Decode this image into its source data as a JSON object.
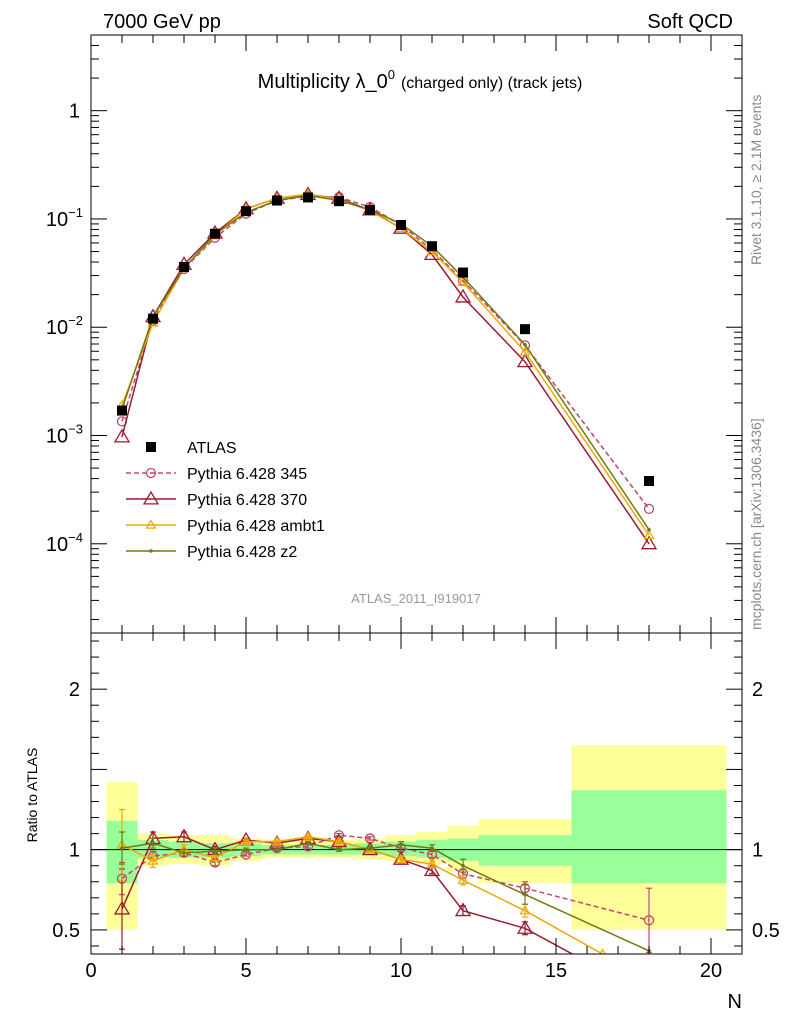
{
  "header": {
    "left": "7000 GeV pp",
    "right": "Soft QCD"
  },
  "side_text": {
    "rivet": "Rivet 3.1.10, ≥ 2.1M events",
    "site": "mcplots.cern.ch [arXiv:1306.3436]"
  },
  "chart_data": [
    {
      "type": "line",
      "title_main": "Multiplicity λ_0",
      "title_sup": "0",
      "title_sub": "(charged only) (track jets)",
      "watermark": "ATLAS_2011_I919017",
      "y_scale": "log",
      "xlim": [
        0,
        21
      ],
      "ylim": [
        1.5e-05,
        5
      ],
      "y_tick_labels": [
        {
          "value": 1,
          "base": "1",
          "exp": ""
        },
        {
          "value": 0.1,
          "base": "10",
          "exp": "−1"
        },
        {
          "value": 0.01,
          "base": "10",
          "exp": "−2"
        },
        {
          "value": 0.001,
          "base": "10",
          "exp": "−3"
        },
        {
          "value": 0.0001,
          "base": "10",
          "exp": "−4"
        }
      ],
      "legend_position": "bottom-left",
      "data": {
        "name": "ATLAS",
        "x": [
          1,
          2,
          3,
          4,
          5,
          6,
          7,
          8,
          9,
          10,
          11,
          12,
          14,
          18
        ],
        "y": [
          0.0017,
          0.012,
          0.036,
          0.073,
          0.118,
          0.148,
          0.158,
          0.146,
          0.121,
          0.088,
          0.056,
          0.032,
          0.0096,
          0.00038
        ]
      },
      "series": [
        {
          "name": "Pythia 6.428 345",
          "color": "#c0486a",
          "dashed": true,
          "marker": "circle",
          "x": [
            1,
            2,
            3,
            4,
            5,
            6,
            7,
            8,
            9,
            10,
            11,
            12,
            14,
            18
          ],
          "y": [
            0.00135,
            0.0115,
            0.0345,
            0.067,
            0.112,
            0.148,
            0.162,
            0.159,
            0.129,
            0.088,
            0.052,
            0.027,
            0.0068,
            0.00021
          ]
        },
        {
          "name": "Pythia 6.428 370",
          "color": "#9b1b30",
          "dashed": false,
          "marker": "triangle",
          "x": [
            1,
            2,
            3,
            4,
            5,
            6,
            7,
            8,
            9,
            10,
            11,
            12,
            14,
            18
          ],
          "y": [
            0.00097,
            0.0125,
            0.038,
            0.074,
            0.124,
            0.155,
            0.168,
            0.155,
            0.121,
            0.082,
            0.047,
            0.019,
            0.0048,
            0.0001
          ]
        },
        {
          "name": "Pythia 6.428 ambt1",
          "color": "#f0a800",
          "dashed": false,
          "marker": "triangle-small",
          "x": [
            1,
            2,
            3,
            4,
            5,
            6,
            7,
            8,
            9,
            10,
            11,
            12,
            14,
            18
          ],
          "y": [
            0.0019,
            0.011,
            0.035,
            0.07,
            0.124,
            0.155,
            0.17,
            0.152,
            0.119,
            0.082,
            0.05,
            0.026,
            0.0059,
            0.00012
          ]
        },
        {
          "name": "Pythia 6.428 z2",
          "color": "#6e7a14",
          "dashed": false,
          "marker": "dot",
          "x": [
            1,
            2,
            3,
            4,
            5,
            6,
            7,
            8,
            9,
            10,
            11,
            12,
            14,
            18
          ],
          "y": [
            0.00175,
            0.0125,
            0.035,
            0.072,
            0.115,
            0.148,
            0.165,
            0.148,
            0.122,
            0.09,
            0.056,
            0.029,
            0.0069,
            0.000135
          ]
        }
      ]
    },
    {
      "type": "line",
      "ylabel": "Ratio to ATLAS",
      "xlabel": "N",
      "xlim": [
        0,
        21
      ],
      "ylim": [
        0.35,
        2.35
      ],
      "x_tick_labels": [
        {
          "value": 0,
          "label": "0"
        },
        {
          "value": 5,
          "label": "5"
        },
        {
          "value": 10,
          "label": "10"
        },
        {
          "value": 15,
          "label": "15"
        },
        {
          "value": 20,
          "label": "20"
        }
      ],
      "y_tick_labels": [
        {
          "value": 2,
          "label": "2"
        },
        {
          "value": 1,
          "label": "1"
        },
        {
          "value": 0.5,
          "label": "0.5"
        }
      ],
      "bands": [
        {
          "x0": 0.5,
          "x1": 1.5,
          "green": [
            0.79,
            1.18
          ],
          "yellow": [
            0.5,
            1.42
          ]
        },
        {
          "x0": 1.5,
          "x1": 2.5,
          "green": [
            0.95,
            1.06
          ],
          "yellow": [
            0.9,
            1.1
          ]
        },
        {
          "x0": 2.5,
          "x1": 3.5,
          "green": [
            0.95,
            1.05
          ],
          "yellow": [
            0.91,
            1.09
          ]
        },
        {
          "x0": 3.5,
          "x1": 4.5,
          "green": [
            0.95,
            1.04
          ],
          "yellow": [
            0.9,
            1.09
          ]
        },
        {
          "x0": 4.5,
          "x1": 5.5,
          "green": [
            0.96,
            1.04
          ],
          "yellow": [
            0.93,
            1.07
          ]
        },
        {
          "x0": 5.5,
          "x1": 6.5,
          "green": [
            0.97,
            1.03
          ],
          "yellow": [
            0.95,
            1.06
          ]
        },
        {
          "x0": 6.5,
          "x1": 7.5,
          "green": [
            0.97,
            1.03
          ],
          "yellow": [
            0.95,
            1.06
          ]
        },
        {
          "x0": 7.5,
          "x1": 8.5,
          "green": [
            0.97,
            1.03
          ],
          "yellow": [
            0.95,
            1.06
          ]
        },
        {
          "x0": 8.5,
          "x1": 9.5,
          "green": [
            0.97,
            1.04
          ],
          "yellow": [
            0.94,
            1.07
          ]
        },
        {
          "x0": 9.5,
          "x1": 10.5,
          "green": [
            0.96,
            1.05
          ],
          "yellow": [
            0.93,
            1.09
          ]
        },
        {
          "x0": 10.5,
          "x1": 11.5,
          "green": [
            0.95,
            1.06
          ],
          "yellow": [
            0.91,
            1.11
          ]
        },
        {
          "x0": 11.5,
          "x1": 12.5,
          "green": [
            0.93,
            1.07
          ],
          "yellow": [
            0.86,
            1.15
          ]
        },
        {
          "x0": 12.5,
          "x1": 15.5,
          "green": [
            0.9,
            1.09
          ],
          "yellow": [
            0.79,
            1.19
          ]
        },
        {
          "x0": 15.5,
          "x1": 20.5,
          "green": [
            0.79,
            1.37
          ],
          "yellow": [
            0.5,
            1.65
          ]
        }
      ],
      "series": [
        {
          "name": "Pythia 6.428 345",
          "color": "#c0486a",
          "dashed": true,
          "marker": "circle",
          "x": [
            1,
            2,
            3,
            4,
            5,
            6,
            7,
            8,
            9,
            10,
            11,
            12,
            14,
            18
          ],
          "y": [
            0.82,
            0.96,
            0.98,
            0.92,
            0.97,
            1.01,
            1.02,
            1.09,
            1.07,
            1.01,
            0.97,
            0.85,
            0.76,
            0.56
          ],
          "err": [
            0.1,
            0.03,
            0.02,
            0.02,
            0.01,
            0.01,
            0.01,
            0.01,
            0.01,
            0.02,
            0.02,
            0.03,
            0.04,
            0.2
          ]
        },
        {
          "name": "Pythia 6.428 370",
          "color": "#9b1b30",
          "dashed": false,
          "marker": "triangle",
          "x": [
            1,
            2,
            3,
            4,
            5,
            6,
            7,
            8,
            9,
            10,
            11,
            12,
            14,
            16
          ],
          "y": [
            0.63,
            1.07,
            1.08,
            1.0,
            1.06,
            1.04,
            1.07,
            1.05,
            1.0,
            0.94,
            0.87,
            0.62,
            0.51,
            0.3
          ],
          "err": [
            0.25,
            0.04,
            0.03,
            0.02,
            0.01,
            0.01,
            0.01,
            0.01,
            0.01,
            0.02,
            0.02,
            0.03,
            0.04,
            0
          ]
        },
        {
          "name": "Pythia 6.428 ambt1",
          "color": "#f0a800",
          "dashed": false,
          "marker": "triangle-small",
          "x": [
            1,
            2,
            3,
            4,
            5,
            6,
            7,
            8,
            9,
            10,
            11,
            12,
            14,
            16.5
          ],
          "y": [
            1.03,
            0.93,
            1.0,
            0.95,
            1.05,
            1.05,
            1.08,
            1.05,
            1.0,
            0.94,
            0.91,
            0.81,
            0.62,
            0.35
          ],
          "err": [
            0.22,
            0.04,
            0.03,
            0.02,
            0.01,
            0.01,
            0.01,
            0.01,
            0.01,
            0.02,
            0.02,
            0.03,
            0.04,
            0
          ]
        },
        {
          "name": "Pythia 6.428 z2",
          "color": "#6e7a14",
          "dashed": false,
          "marker": "dot",
          "x": [
            1,
            2,
            3,
            4,
            5,
            6,
            7,
            8,
            9,
            10,
            11,
            12,
            14,
            18
          ],
          "y": [
            1.01,
            1.04,
            0.98,
            0.99,
            1.0,
            1.0,
            1.04,
            1.0,
            1.01,
            1.03,
            1.01,
            0.9,
            0.72,
            0.37
          ],
          "err": [
            0.1,
            0.03,
            0.02,
            0.02,
            0.01,
            0.01,
            0.01,
            0.01,
            0.01,
            0.02,
            0.02,
            0.04,
            0.06,
            0
          ]
        }
      ]
    }
  ]
}
